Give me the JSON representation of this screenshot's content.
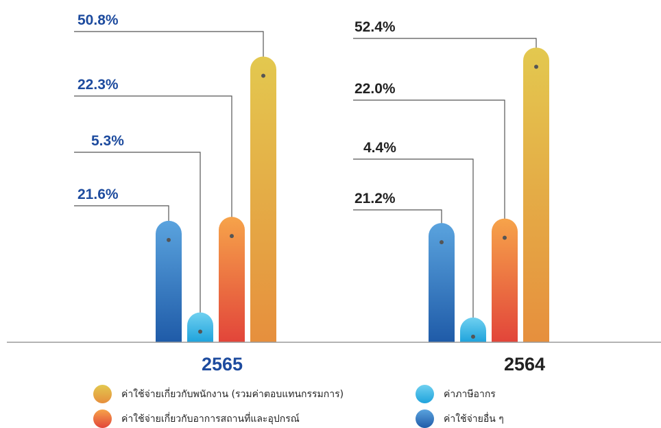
{
  "chart_data": {
    "type": "bar",
    "categories": [
      "2565",
      "2564"
    ],
    "series": [
      {
        "name": "ค่าใช้จ่ายอื่น ๆ",
        "values": [
          21.6,
          21.2
        ],
        "color_top": "#5aa3de",
        "color_bottom": "#1f5ba8"
      },
      {
        "name": "ค่าภาษีอากร",
        "values": [
          5.3,
          4.4
        ],
        "color_top": "#6fd0f0",
        "color_bottom": "#1fa3dc"
      },
      {
        "name": "ค่าใช้จ่ายเกี่ยวกับอาการสถานที่และอุปกรณ์",
        "values": [
          22.3,
          22.0
        ],
        "color_top": "#f6a34a",
        "color_bottom": "#e2453a"
      },
      {
        "name": "ค่าใช้จ่ายเกี่ยวกับพนักงาน (รวมค่าตอบแทนกรรมการ)",
        "values": [
          50.8,
          52.4
        ],
        "color_top": "#e3c84f",
        "color_bottom": "#e68f3d"
      }
    ],
    "labels": [
      [
        "21.6%",
        "5.3%",
        "22.3%",
        "50.8%"
      ],
      [
        "21.2%",
        "4.4%",
        "22.0%",
        "52.4%"
      ]
    ],
    "label_colors": [
      "#1d4b9e",
      "#222222"
    ],
    "ylim": [
      0,
      60
    ]
  },
  "legend": [
    {
      "label": "ค่าใช้จ่ายเกี่ยวกับพนักงาน (รวมค่าตอบแทนกรรมการ)",
      "color_top": "#e3c84f",
      "color_bottom": "#e68f3d"
    },
    {
      "label": "ค่าภาษีอากร",
      "color_top": "#6fd0f0",
      "color_bottom": "#1fa3dc"
    },
    {
      "label": "ค่าใช้จ่ายเกี่ยวกับอาการสถานที่และอุปกรณ์",
      "color_top": "#f6a34a",
      "color_bottom": "#e2453a"
    },
    {
      "label": "ค่าใช้จ่ายอื่น ๆ",
      "color_top": "#5aa3de",
      "color_bottom": "#1f5ba8"
    }
  ]
}
